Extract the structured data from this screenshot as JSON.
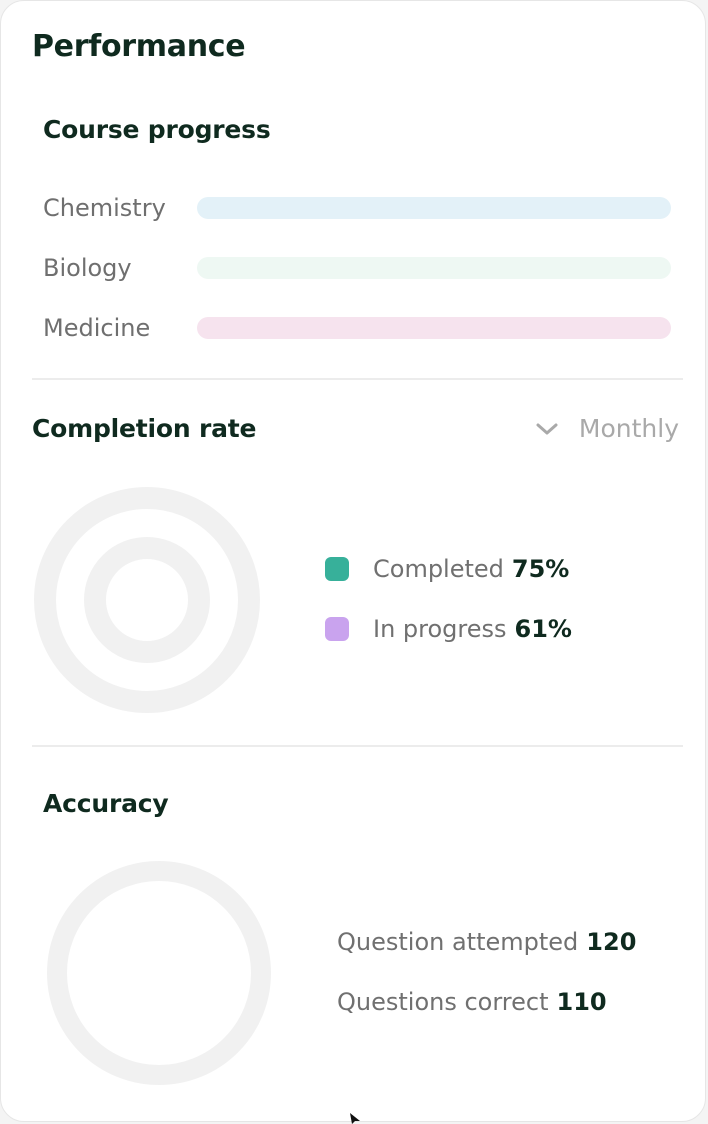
{
  "title": "Performance",
  "course_progress": {
    "heading": "Course progress",
    "courses": [
      {
        "label": "Chemistry",
        "color": "#e3f1f8",
        "progress": 0
      },
      {
        "label": "Biology",
        "color": "#eef8f3",
        "progress": 0
      },
      {
        "label": "Medicine",
        "color": "#f6e3ee",
        "progress": 0
      }
    ]
  },
  "completion_rate": {
    "heading": "Completion rate",
    "period": "Monthly",
    "period_icon": "chevron-down-icon",
    "legend": [
      {
        "label": "Completed",
        "value": "75%",
        "color": "#37b09a"
      },
      {
        "label": "In progress",
        "value": "61%",
        "color": "#c9a3ee"
      }
    ]
  },
  "accuracy": {
    "heading": "Accuracy",
    "stats": [
      {
        "label": "Question attempted",
        "value": "120"
      },
      {
        "label": "Questions correct",
        "value": "110"
      }
    ]
  },
  "colors": {
    "ring_track": "#f1f1f1",
    "heading": "#0f2a1f",
    "muted_text": "#707070"
  }
}
